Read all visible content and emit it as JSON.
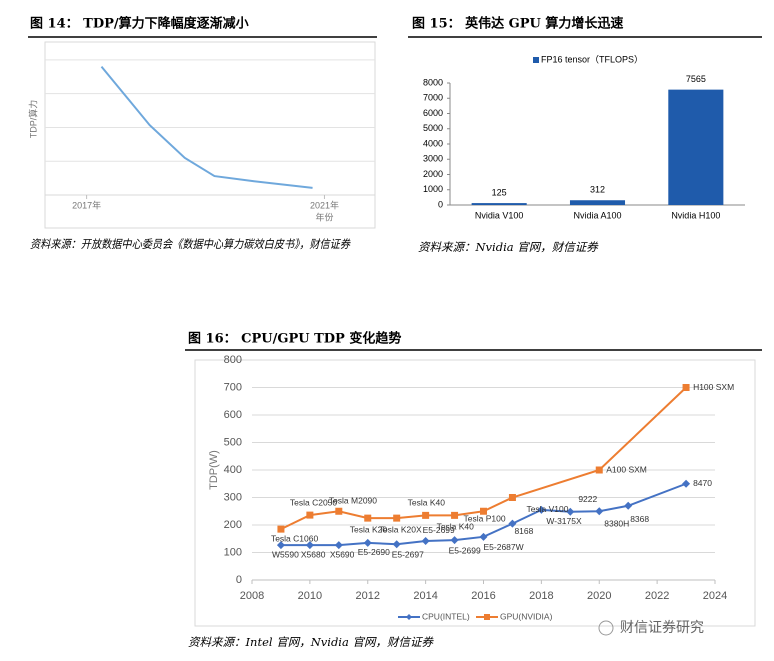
{
  "chart_data": [
    {
      "type": "line",
      "title": "图 14： TDP/算力下降幅度逐渐减小",
      "ylabel": "TDP/算力",
      "xlabel": "年份",
      "source": "资料来源：开放数据中心委员会《数据中心算力碳效白皮书》，财信证券",
      "xlim": [
        2016.3,
        2021.85
      ],
      "xticks": [
        {
          "value": 2017,
          "label": "2017年"
        },
        {
          "value": 2021,
          "label": "2021年"
        }
      ],
      "ylim": [
        0,
        4.5
      ],
      "gridlines": [
        1,
        2,
        3,
        4
      ],
      "series": [
        {
          "color": "#6fa8dc",
          "x": [
            2017.25,
            2018.06,
            2018.65,
            2019.15,
            2019.8,
            2020.8
          ],
          "values": [
            3.8,
            2.07,
            1.1,
            0.56,
            0.41,
            0.21
          ]
        }
      ]
    },
    {
      "type": "bar",
      "title": "图 15： 英伟达 GPU 算力增长迅速",
      "source": "资料来源：Nvidia 官网，财信证券",
      "categories": [
        "Nvidia V100",
        "Nvidia A100",
        "Nvidia H100"
      ],
      "series": [
        {
          "name": "FP16 tensor（TFLOPS）",
          "color": "#1f5bab",
          "values": [
            125,
            312,
            7565
          ]
        }
      ],
      "ylim": [
        0,
        8000
      ],
      "yticks": [
        0,
        1000,
        2000,
        3000,
        4000,
        5000,
        6000,
        7000,
        8000
      ]
    },
    {
      "type": "line",
      "title": "图 16： CPU/GPU TDP 变化趋势",
      "ylabel": "TDP(W)",
      "source": "资料来源：Intel 官网，Nvidia 官网，财信证券",
      "xlim": [
        2008,
        2024
      ],
      "xticks": [
        2008,
        2010,
        2012,
        2014,
        2016,
        2018,
        2020,
        2022,
        2024
      ],
      "ylim": [
        0,
        800
      ],
      "yticks": [
        0,
        100,
        200,
        300,
        400,
        500,
        600,
        700,
        800
      ],
      "grid": true,
      "legend": "bottom",
      "series": [
        {
          "name": "CPU(INTEL)",
          "color": "#4472c4",
          "marker": "diamond",
          "x": [
            2009,
            2010,
            2011,
            2012,
            2013,
            2014,
            2015,
            2016,
            2017,
            2018,
            2019,
            2020,
            2021,
            2023
          ],
          "values": [
            127,
            127,
            127,
            135,
            130,
            142,
            145,
            157,
            205,
            255,
            248,
            250,
            270,
            350
          ],
          "labels": [
            "W5590",
            "X5680",
            "X5690",
            "E5-2690",
            "E5-2697",
            "E5-2699",
            "E5-2699",
            "E5-2687W",
            "8168",
            "W-3175X",
            "9222",
            "8380H",
            "8368",
            "8470"
          ]
        },
        {
          "name": "GPU(NVIDIA)",
          "color": "#ed7d31",
          "marker": "square",
          "x": [
            2009,
            2010,
            2011,
            2012,
            2013,
            2014,
            2015,
            2016,
            2017,
            2020,
            2023
          ],
          "values": [
            185,
            236,
            250,
            225,
            225,
            235,
            235,
            250,
            300,
            400,
            700
          ],
          "labels": [
            "Tesla C1060",
            "Tesla C2050",
            "Tesla M2090",
            "Tesla K20",
            "Tesla K20X",
            "Tesla K40",
            "Tesla K40",
            "Tesla P100",
            "Tesla V100",
            "A100 SXM",
            "H100 SXM"
          ]
        }
      ]
    }
  ],
  "watermark": "财信证券研究"
}
